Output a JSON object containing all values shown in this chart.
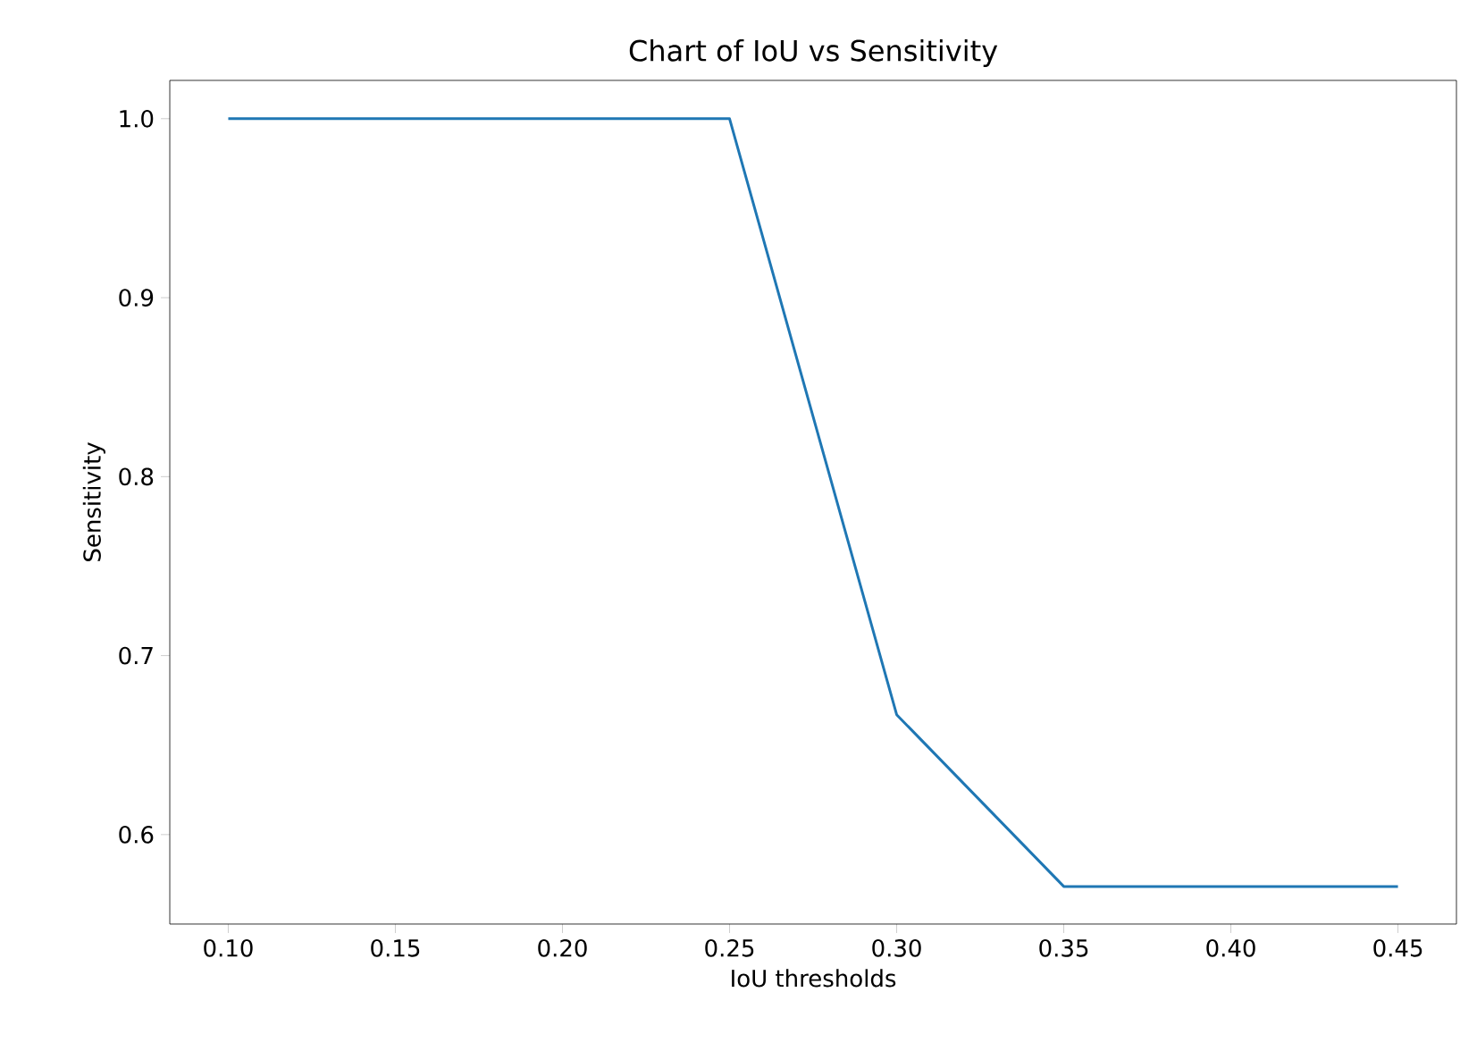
{
  "chart_data": {
    "type": "line",
    "title": "Chart of IoU vs Sensitivity",
    "xlabel": "IoU thresholds",
    "ylabel": "Sensitivity",
    "x": [
      0.1,
      0.15,
      0.2,
      0.25,
      0.3,
      0.35,
      0.4,
      0.45
    ],
    "series": [
      {
        "color": "#1f77b4",
        "values": [
          1.0,
          1.0,
          1.0,
          1.0,
          0.667,
          0.571,
          0.571,
          0.571
        ]
      }
    ],
    "xlim": [
      0.0825,
      0.4675
    ],
    "ylim": [
      0.55,
      1.0214
    ],
    "xticks": [
      {
        "value": 0.1,
        "label": "0.10"
      },
      {
        "value": 0.15,
        "label": "0.15"
      },
      {
        "value": 0.2,
        "label": "0.20"
      },
      {
        "value": 0.25,
        "label": "0.25"
      },
      {
        "value": 0.3,
        "label": "0.30"
      },
      {
        "value": 0.35,
        "label": "0.35"
      },
      {
        "value": 0.4,
        "label": "0.40"
      },
      {
        "value": 0.45,
        "label": "0.45"
      }
    ],
    "yticks": [
      {
        "value": 0.6,
        "label": "0.6"
      },
      {
        "value": 0.7,
        "label": "0.7"
      },
      {
        "value": 0.8,
        "label": "0.8"
      },
      {
        "value": 0.9,
        "label": "0.9"
      },
      {
        "value": 1.0,
        "label": "1.0"
      }
    ],
    "grid": false,
    "marker": "none",
    "line_style": "solid"
  }
}
